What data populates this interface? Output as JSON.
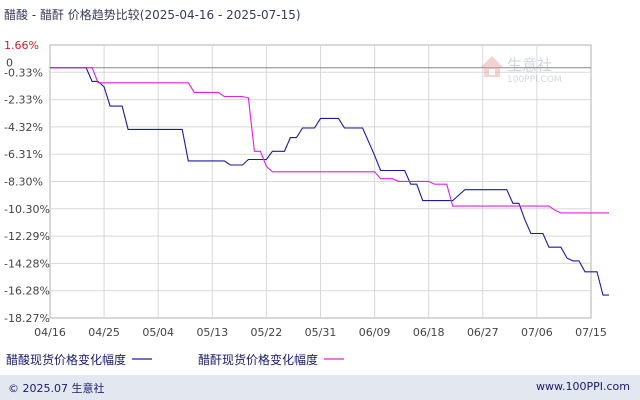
{
  "chart_data": {
    "type": "line",
    "title": "醋酸 - 醋酐 价格趋势比较(2025-04-16 - 2025-07-15)",
    "x_ticks": [
      "04/16",
      "04/25",
      "05/04",
      "05/13",
      "05/22",
      "05/31",
      "06/09",
      "06/18",
      "06/27",
      "07/06",
      "07/15"
    ],
    "y_ticks": [
      "1.66%",
      "-0.33%",
      "-2.33%",
      "-4.32%",
      "-6.31%",
      "-8.30%",
      "-10.30%",
      "-12.29%",
      "-14.28%",
      "-16.28%",
      "-18.27%"
    ],
    "y_zero_label": "0",
    "ylim": [
      -18.27,
      1.66
    ],
    "xlim_days": [
      0,
      90
    ],
    "grid": true,
    "legend_position": "bottom-left",
    "series": [
      {
        "name": "醋酸现货价格变化幅度",
        "color": "#1a1aa6",
        "points": [
          [
            0,
            0
          ],
          [
            6,
            0
          ],
          [
            7,
            -1
          ],
          [
            8,
            -1
          ],
          [
            9,
            -1.4
          ],
          [
            10,
            -2.8
          ],
          [
            11,
            -2.8
          ],
          [
            12,
            -2.8
          ],
          [
            13,
            -4.5
          ],
          [
            14,
            -4.5
          ],
          [
            22,
            -4.5
          ],
          [
            23,
            -6.8
          ],
          [
            24,
            -6.8
          ],
          [
            29,
            -6.8
          ],
          [
            30,
            -7.1
          ],
          [
            31,
            -7.1
          ],
          [
            32,
            -7.1
          ],
          [
            33,
            -6.7
          ],
          [
            36,
            -6.7
          ],
          [
            37,
            -6.1
          ],
          [
            38,
            -6.1
          ],
          [
            39,
            -6.1
          ],
          [
            40,
            -5.1
          ],
          [
            41,
            -5.1
          ],
          [
            42,
            -4.4
          ],
          [
            43,
            -4.4
          ],
          [
            44,
            -4.4
          ],
          [
            45,
            -3.7
          ],
          [
            48,
            -3.7
          ],
          [
            49,
            -4.4
          ],
          [
            52,
            -4.4
          ],
          [
            53,
            -5.4
          ],
          [
            54,
            -6.4
          ],
          [
            55,
            -7.5
          ],
          [
            56,
            -7.5
          ],
          [
            59,
            -7.5
          ],
          [
            60,
            -8.5
          ],
          [
            61,
            -8.5
          ],
          [
            62,
            -9.7
          ],
          [
            65,
            -9.7
          ],
          [
            66,
            -9.7
          ],
          [
            67,
            -9.7
          ],
          [
            68,
            -9.3
          ],
          [
            69,
            -8.9
          ],
          [
            75,
            -8.9
          ],
          [
            76,
            -8.9
          ],
          [
            77,
            -9.9
          ],
          [
            78,
            -9.9
          ],
          [
            79,
            -11.1
          ],
          [
            80,
            -12.1
          ],
          [
            81,
            -12.1
          ],
          [
            82,
            -12.1
          ],
          [
            83,
            -13.1
          ],
          [
            84,
            -13.1
          ],
          [
            85,
            -13.1
          ],
          [
            86,
            -13.9
          ],
          [
            87,
            -14.1
          ],
          [
            88,
            -14.1
          ],
          [
            89,
            -14.9
          ],
          [
            90,
            -14.9
          ],
          [
            91,
            -14.9
          ],
          [
            92,
            -16.6
          ],
          [
            93,
            -16.6
          ]
        ]
      },
      {
        "name": "醋酐现货价格变化幅度",
        "color": "#e020e0",
        "points": [
          [
            0,
            0
          ],
          [
            7,
            0
          ],
          [
            8,
            -1.1
          ],
          [
            22,
            -1.1
          ],
          [
            23,
            -1.1
          ],
          [
            24,
            -1.8
          ],
          [
            28,
            -1.8
          ],
          [
            29,
            -2.1
          ],
          [
            32,
            -2.1
          ],
          [
            33,
            -2.2
          ],
          [
            34,
            -6.1
          ],
          [
            35,
            -6.1
          ],
          [
            36,
            -7.2
          ],
          [
            37,
            -7.6
          ],
          [
            38,
            -7.6
          ],
          [
            54,
            -7.6
          ],
          [
            55,
            -8.1
          ],
          [
            57,
            -8.1
          ],
          [
            58,
            -8.3
          ],
          [
            63,
            -8.3
          ],
          [
            64,
            -8.5
          ],
          [
            66,
            -8.5
          ],
          [
            67,
            -10.1
          ],
          [
            83,
            -10.1
          ],
          [
            84,
            -10.4
          ],
          [
            85,
            -10.6
          ],
          [
            93,
            -10.6
          ]
        ]
      }
    ]
  },
  "watermark": {
    "brand": "生意社",
    "url": "100PPI.COM"
  },
  "footer": {
    "left": "© 2025.07 生意社",
    "right": "www.100PPI.com"
  }
}
